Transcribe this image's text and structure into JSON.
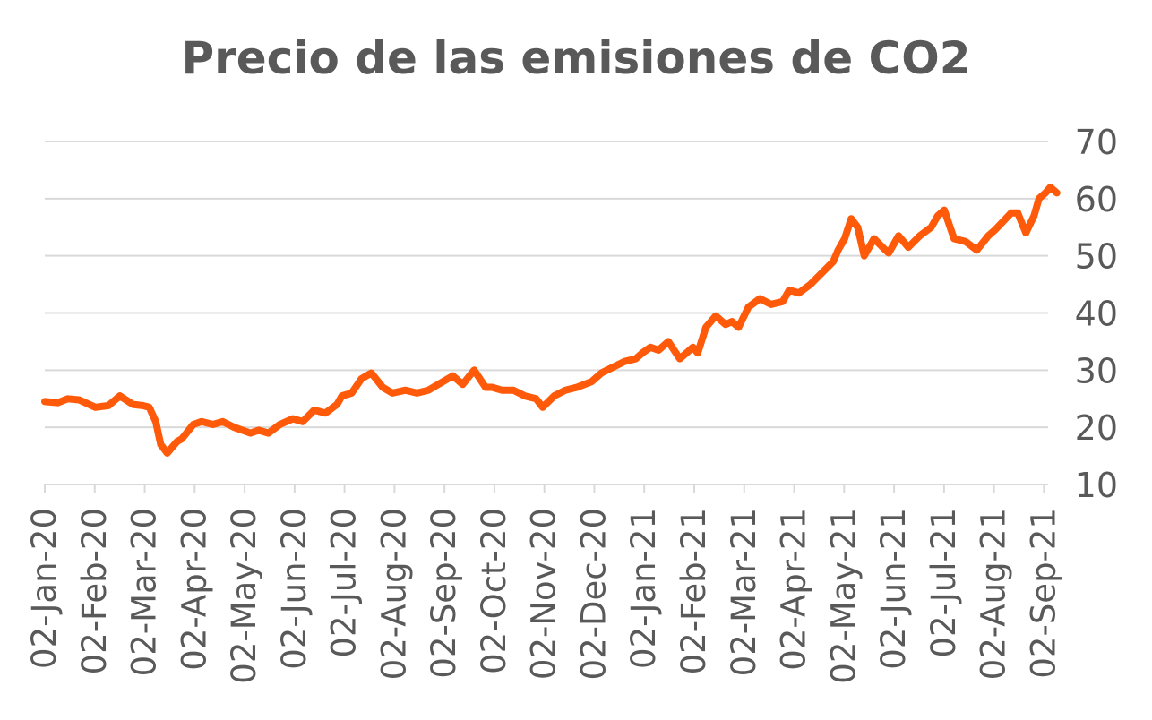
{
  "chart_data": {
    "type": "line",
    "title": "Precio de las emisiones de CO2",
    "xlabel": "",
    "ylabel": "",
    "ylim": [
      10,
      70
    ],
    "y_ticks": [
      "10",
      "20",
      "30",
      "40",
      "50",
      "60",
      "70"
    ],
    "y_axis_side": "right",
    "grid": true,
    "x_tick_labels": [
      "02-Jan-20",
      "02-Feb-20",
      "02-Mar-20",
      "02-Apr-20",
      "02-May-20",
      "02-Jun-20",
      "02-Jul-20",
      "02-Aug-20",
      "02-Sep-20",
      "02-Oct-20",
      "02-Nov-20",
      "02-Dec-20",
      "02-Jan-21",
      "02-Feb-21",
      "02-Mar-21",
      "02-Apr-21",
      "02-May-21",
      "02-Jun-21",
      "02-Jul-21",
      "02-Aug-21",
      "02-Sep-21"
    ],
    "colors": {
      "line": "#ff5a0a",
      "grid": "#d9d9d9",
      "text": "#595959"
    },
    "series": [
      {
        "x": [
          "2020-01-02",
          "2020-01-10",
          "2020-01-16",
          "2020-01-23",
          "2020-02-02",
          "2020-02-10",
          "2020-02-17",
          "2020-02-25",
          "2020-03-02",
          "2020-03-06",
          "2020-03-10",
          "2020-03-13",
          "2020-03-17",
          "2020-03-20",
          "2020-03-23",
          "2020-03-26",
          "2020-04-02",
          "2020-04-07",
          "2020-04-14",
          "2020-04-20",
          "2020-04-27",
          "2020-05-02",
          "2020-05-07",
          "2020-05-12",
          "2020-05-18",
          "2020-05-25",
          "2020-06-02",
          "2020-06-08",
          "2020-06-15",
          "2020-06-22",
          "2020-06-29",
          "2020-07-02",
          "2020-07-08",
          "2020-07-14",
          "2020-07-20",
          "2020-07-27",
          "2020-08-02",
          "2020-08-10",
          "2020-08-17",
          "2020-08-24",
          "2020-09-02",
          "2020-09-08",
          "2020-09-14",
          "2020-09-21",
          "2020-09-28",
          "2020-10-02",
          "2020-10-08",
          "2020-10-15",
          "2020-10-22",
          "2020-10-29",
          "2020-11-02",
          "2020-11-09",
          "2020-11-16",
          "2020-11-23",
          "2020-12-02",
          "2020-12-08",
          "2020-12-15",
          "2020-12-22",
          "2020-12-29",
          "2021-01-02",
          "2021-01-07",
          "2021-01-12",
          "2021-01-18",
          "2021-01-25",
          "2021-02-02",
          "2021-02-05",
          "2021-02-10",
          "2021-02-16",
          "2021-02-22",
          "2021-02-26",
          "2021-03-02",
          "2021-03-08",
          "2021-03-15",
          "2021-03-22",
          "2021-03-29",
          "2021-04-02",
          "2021-04-08",
          "2021-04-15",
          "2021-04-22",
          "2021-04-29",
          "2021-05-02",
          "2021-05-06",
          "2021-05-10",
          "2021-05-14",
          "2021-05-18",
          "2021-05-24",
          "2021-05-31",
          "2021-06-02",
          "2021-06-08",
          "2021-06-14",
          "2021-06-21",
          "2021-06-28",
          "2021-07-02",
          "2021-07-06",
          "2021-07-12",
          "2021-07-19",
          "2021-07-26",
          "2021-08-02",
          "2021-08-06",
          "2021-08-11",
          "2021-08-16",
          "2021-08-20",
          "2021-08-25",
          "2021-08-30",
          "2021-09-02",
          "2021-09-06",
          "2021-09-09",
          "2021-09-13"
        ],
        "values": [
          24.5,
          24.3,
          25.0,
          24.8,
          23.5,
          23.8,
          25.5,
          24.0,
          23.8,
          23.5,
          21.0,
          17.0,
          15.5,
          16.5,
          17.5,
          18.0,
          20.5,
          21.0,
          20.5,
          21.0,
          20.0,
          19.5,
          19.0,
          19.5,
          19.0,
          20.5,
          21.5,
          21.0,
          23.0,
          22.5,
          24.0,
          25.5,
          26.0,
          28.5,
          29.5,
          27.0,
          26.0,
          26.5,
          26.0,
          26.5,
          28.0,
          29.0,
          27.5,
          30.0,
          27.0,
          27.0,
          26.5,
          26.5,
          25.5,
          25.0,
          23.5,
          25.5,
          26.5,
          27.0,
          28.0,
          29.5,
          30.5,
          31.5,
          32.0,
          33.0,
          34.0,
          33.5,
          35.0,
          32.0,
          34.0,
          33.0,
          37.5,
          39.5,
          38.0,
          38.5,
          37.5,
          41.0,
          42.5,
          41.5,
          42.0,
          44.0,
          43.5,
          45.0,
          47.0,
          49.0,
          51.0,
          53.0,
          56.5,
          55.0,
          50.0,
          53.0,
          51.0,
          50.5,
          53.5,
          51.5,
          53.5,
          55.0,
          57.0,
          58.0,
          53.0,
          52.5,
          51.0,
          53.5,
          54.5,
          56.0,
          57.5,
          57.5,
          54.0,
          57.0,
          60.0,
          61.0,
          62.0,
          61.0
        ]
      }
    ]
  }
}
